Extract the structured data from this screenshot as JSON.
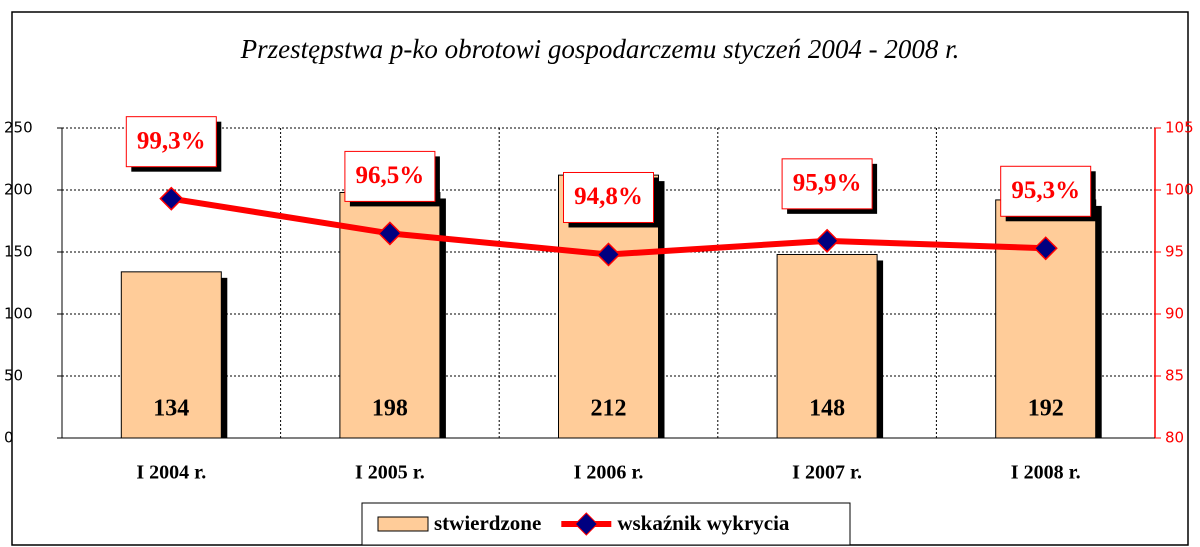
{
  "chart_data": {
    "type": "combo",
    "title": "Przestępstwa p-ko obrotowi gospodarczemu styczeń 2004 - 2008 r.",
    "categories": [
      "I 2004 r.",
      "I 2005 r.",
      "I 2006 r.",
      "I 2007 r.",
      "I 2008 r."
    ],
    "series": [
      {
        "name": "stwierdzone",
        "type": "bar",
        "color": "#ffcc99",
        "values": [
          134,
          198,
          212,
          148,
          192
        ]
      },
      {
        "name": "wskaźnik wykrycia",
        "type": "line",
        "axis": "y2",
        "color": "#ff0000",
        "marker_color": "#000080",
        "values": [
          99.3,
          96.5,
          94.8,
          95.9,
          95.3
        ],
        "value_labels": [
          "99,3%",
          "96,5%",
          "94,8%",
          "95,9%",
          "95,3%"
        ]
      }
    ],
    "ylim": [
      0,
      250
    ],
    "yticks": [
      0,
      50,
      100,
      150,
      200,
      250
    ],
    "y2lim": [
      80,
      105
    ],
    "y2ticks": [
      80,
      85,
      90,
      95,
      100,
      105
    ],
    "y2color": "#ff0000",
    "grid": true,
    "legend": "bottom"
  }
}
